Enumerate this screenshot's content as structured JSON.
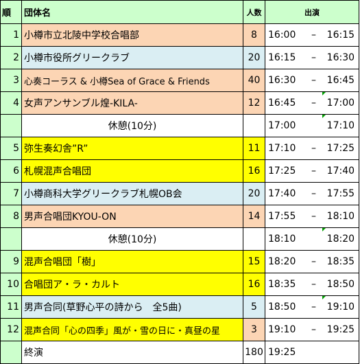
{
  "headers": {
    "order": "順",
    "group": "団体名",
    "count": "人数",
    "performance": "出演"
  },
  "rows": [
    {
      "no": "1",
      "name": "小樽市立北陵中学校合唱部",
      "count": "8",
      "start": "16:00",
      "dash": "–",
      "end": "16:15"
    },
    {
      "no": "2",
      "name": "小樽市役所グリークラブ",
      "count": "20",
      "start": "16:15",
      "dash": "–",
      "end": "16:30"
    },
    {
      "no": "3",
      "name": "心奏コーラス & 小樽Sea of Grace & Friends",
      "count": "40",
      "start": "16:30",
      "dash": "–",
      "end": "16:45"
    },
    {
      "no": "4",
      "name": "女声アンサンブル煌-KILA-",
      "count": "12",
      "start": "16:45",
      "dash": "–",
      "end": "17:00"
    },
    {
      "name": "休憩(10分)",
      "start": "17:00",
      "end": "17:10"
    },
    {
      "no": "5",
      "name": "弥生奏幻舎”R”",
      "count": "11",
      "start": "17:10",
      "dash": "–",
      "end": "17:25"
    },
    {
      "no": "6",
      "name": "札幌混声合唱団",
      "count": "16",
      "start": "17:25",
      "dash": "–",
      "end": "17:40"
    },
    {
      "no": "7",
      "name": "小樽商科大学グリークラブ札幌OB会",
      "count": "20",
      "start": "17:40",
      "dash": "–",
      "end": "17:55"
    },
    {
      "no": "8",
      "name": "男声合唱団KYOU-ON",
      "count": "14",
      "start": "17:55",
      "dash": "–",
      "end": "18:10"
    },
    {
      "name": "休憩(10分)",
      "start": "18:10",
      "end": "18:20"
    },
    {
      "no": "9",
      "name": "混声合唱団「樹」",
      "count": "15",
      "start": "18:20",
      "dash": "–",
      "end": "18:35"
    },
    {
      "no": "10",
      "name": "合唱団ア・ラ・カルト",
      "count": "16",
      "start": "18:35",
      "dash": "–",
      "end": "18:50"
    },
    {
      "no": "11",
      "name": "男声合同(草野心平の詩から　全5曲)",
      "count": "5",
      "start": "18:50",
      "dash": "–",
      "end": "19:10"
    },
    {
      "no": "12",
      "name": "混声合同「心の四季」風が・雪の日に・真昼の星",
      "count": "3",
      "start": "19:10",
      "dash": "–",
      "end": "19:25"
    },
    {
      "name": "終演",
      "count": "180",
      "start": "19:25"
    }
  ],
  "colors": {
    "header_green": "#ccffcc",
    "peach": "#fcd5b4",
    "light_blue": "#daeef3",
    "yellow": "#ffff00",
    "triangle_green": "#00a000"
  }
}
